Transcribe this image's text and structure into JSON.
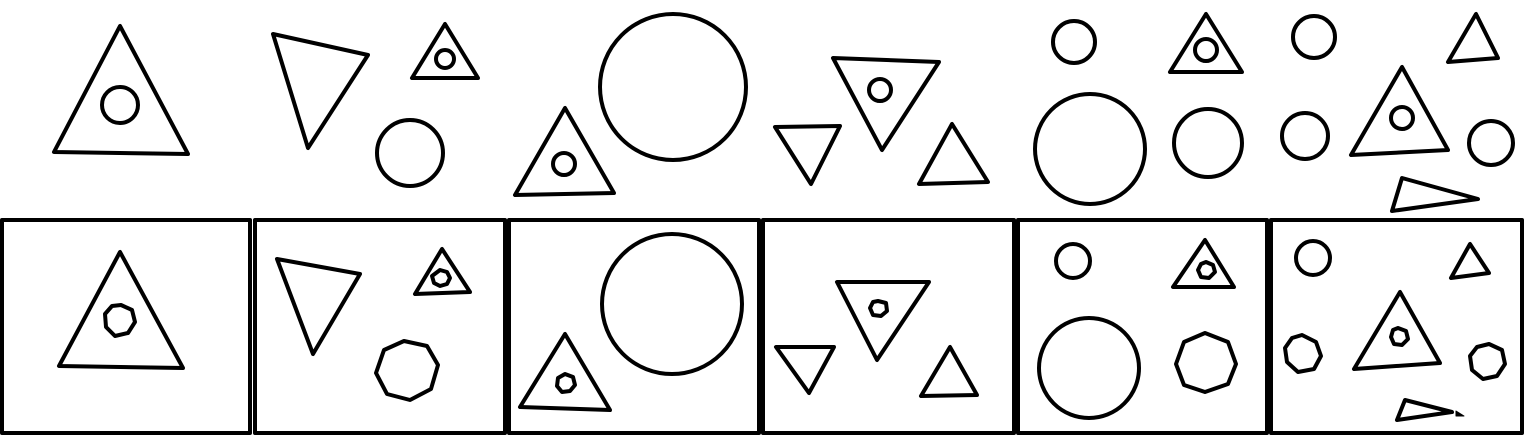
{
  "colors": {
    "stroke": "#000000",
    "background": "#ffffff"
  },
  "top_row": {
    "label": "",
    "figures": [
      {
        "icon": "triangle-with-circle"
      },
      {
        "icon": "triangle-pair-with-circle"
      },
      {
        "icon": "triangle-and-large-circle"
      },
      {
        "icon": "three-triangles"
      },
      {
        "icon": "circles-and-triangle"
      },
      {
        "icon": "mixed-shapes"
      }
    ]
  },
  "bottom_row": {
    "label": "",
    "options": [
      {
        "icon": "triangle-with-heptagon"
      },
      {
        "icon": "triangles-and-heptagon"
      },
      {
        "icon": "triangle-and-circle"
      },
      {
        "icon": "three-triangles"
      },
      {
        "icon": "circles-and-heptagon"
      },
      {
        "icon": "mixed-shapes-heptagons"
      }
    ]
  }
}
